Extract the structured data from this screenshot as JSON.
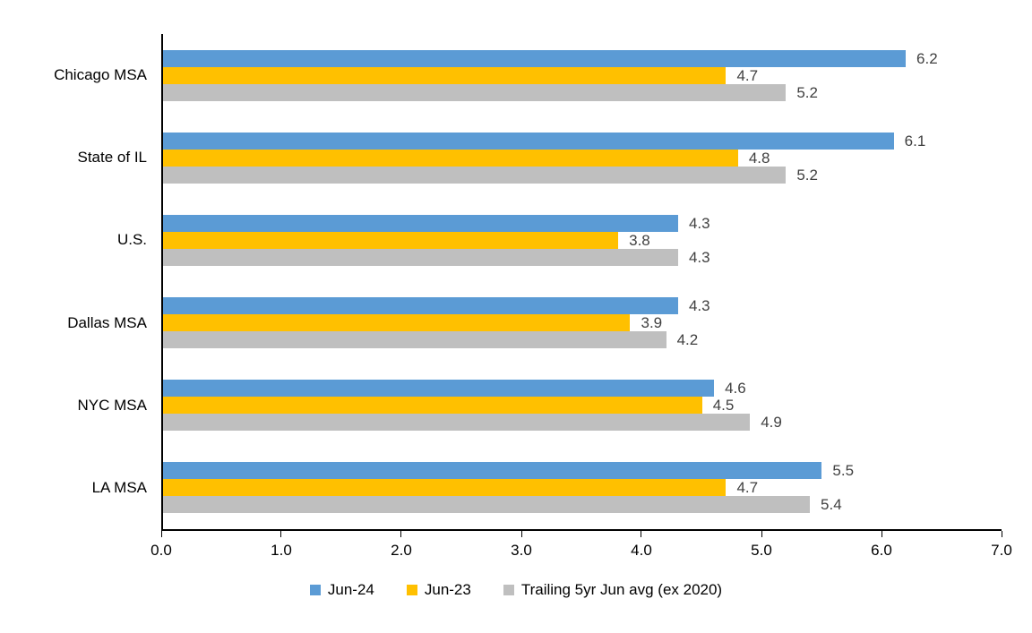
{
  "chart_data": {
    "type": "bar",
    "orientation": "horizontal",
    "title": "",
    "xlabel": "",
    "ylabel": "",
    "categories": [
      "Chicago MSA",
      "State of IL",
      "U.S.",
      "Dallas MSA",
      "NYC MSA",
      "LA MSA"
    ],
    "series": [
      {
        "name": "Jun-24",
        "color": "#5B9BD5",
        "values": [
          6.2,
          6.1,
          4.3,
          4.3,
          4.6,
          5.5
        ]
      },
      {
        "name": "Jun-23",
        "color": "#FFC000",
        "values": [
          4.7,
          4.8,
          3.8,
          3.9,
          4.5,
          4.7
        ]
      },
      {
        "name": "Trailing 5yr Jun avg (ex 2020)",
        "color": "#BFBFBF",
        "values": [
          5.2,
          5.2,
          4.3,
          4.2,
          4.9,
          5.4
        ]
      }
    ],
    "xlim": [
      0,
      7
    ],
    "x_tick_labels": [
      "0.0",
      "1.0",
      "2.0",
      "3.0",
      "4.0",
      "5.0",
      "6.0",
      "7.0"
    ],
    "x_tick_values": [
      0,
      1,
      2,
      3,
      4,
      5,
      6,
      7
    ],
    "grid": false,
    "data_labels": true,
    "legend_position": "bottom",
    "axis_color": "#000000",
    "value_label_color": "#404040"
  }
}
